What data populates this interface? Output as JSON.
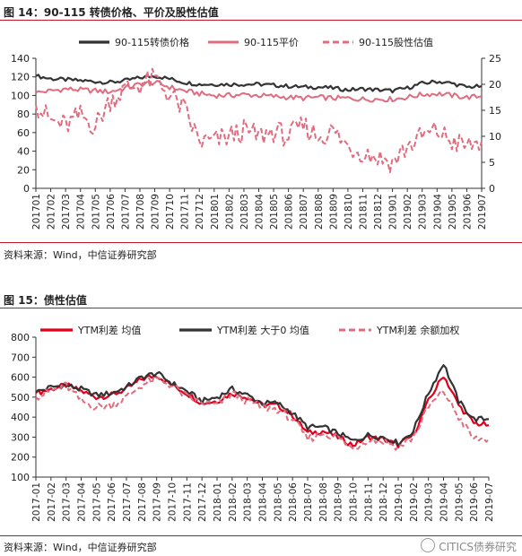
{
  "figure1": {
    "title": "图 14：90-115 转债价格、平价及股性估值",
    "source": "资料来源：Wind，中信证券研究部"
  },
  "figure2": {
    "title": "图 15：债性估值",
    "source": "资料来源：Wind，中信证券研究部"
  },
  "watermark": "CITICS债券研究",
  "colors": {
    "dark": "#333333",
    "pink": "#e06c80",
    "red": "#e0001b",
    "rule": "#c0182a"
  },
  "chart_data": [
    {
      "type": "line",
      "title": "",
      "categories": [
        "201701",
        "201702",
        "201703",
        "201704",
        "201705",
        "201706",
        "201707",
        "201708",
        "201709",
        "201710",
        "201711",
        "201712",
        "201801",
        "201802",
        "201803",
        "201804",
        "201805",
        "201806",
        "201807",
        "201808",
        "201809",
        "201810",
        "201811",
        "201812",
        "201901",
        "201902",
        "201903",
        "201904",
        "201905",
        "201906",
        "201907"
      ],
      "ylim": [
        0,
        140
      ],
      "yticks": [
        0,
        20,
        40,
        60,
        80,
        100,
        120,
        140
      ],
      "y2lim": [
        0,
        25
      ],
      "y2ticks": [
        0,
        5,
        10,
        15,
        20,
        25
      ],
      "legend_position": "top",
      "grid": false,
      "series": [
        {
          "name": "90-115转债价格",
          "axis": "left",
          "style": "solid-dark",
          "values": [
            121,
            118,
            117,
            116,
            115,
            114,
            116,
            119,
            121,
            118,
            114,
            112,
            112,
            112,
            112,
            112,
            111,
            110,
            109,
            109,
            108,
            106,
            107,
            106,
            105,
            108,
            113,
            115,
            113,
            109,
            110
          ]
        },
        {
          "name": "90-115平价",
          "axis": "left",
          "style": "solid-pink",
          "values": [
            103,
            105,
            107,
            106,
            105,
            104,
            108,
            112,
            114,
            109,
            105,
            102,
            100,
            100,
            101,
            100,
            99,
            98,
            97,
            98,
            97,
            97,
            96,
            96,
            96,
            98,
            101,
            102,
            100,
            98,
            99
          ]
        },
        {
          "name": "90-115股性估值",
          "axis": "right",
          "style": "dashed-pink",
          "values": [
            16,
            13,
            12,
            14,
            12,
            17,
            19,
            20,
            21,
            18,
            15,
            9,
            9,
            10,
            11,
            10,
            11,
            10,
            12,
            10,
            11,
            8,
            7,
            6,
            5,
            8,
            10,
            11,
            9,
            8,
            9
          ]
        }
      ]
    },
    {
      "type": "line",
      "title": "",
      "categories": [
        "2017-01",
        "2017-02",
        "2017-03",
        "2017-04",
        "2017-05",
        "2017-06",
        "2017-07",
        "2017-08",
        "2017-09",
        "2017-10",
        "2017-11",
        "2017-12",
        "2018-01",
        "2018-02",
        "2018-03",
        "2018-04",
        "2018-05",
        "2018-06",
        "2018-07",
        "2018-08",
        "2018-09",
        "2018-10",
        "2018-11",
        "2018-12",
        "2019-01",
        "2019-02",
        "2019-03",
        "2019-04",
        "2019-05",
        "2019-06",
        "2019-07"
      ],
      "ylim": [
        100,
        800
      ],
      "yticks": [
        100,
        200,
        300,
        400,
        500,
        600,
        700,
        800
      ],
      "legend_position": "top",
      "grid": false,
      "series": [
        {
          "name": "YTM利差 均值",
          "style": "solid-red",
          "values": [
            520,
            540,
            560,
            530,
            500,
            510,
            540,
            590,
            610,
            560,
            520,
            470,
            480,
            520,
            500,
            460,
            460,
            410,
            320,
            330,
            300,
            260,
            300,
            290,
            260,
            310,
            480,
            610,
            460,
            370,
            360
          ]
        },
        {
          "name": "YTM利差 大于0 均值",
          "style": "solid-dark",
          "values": [
            525,
            550,
            560,
            540,
            510,
            520,
            550,
            600,
            620,
            570,
            530,
            480,
            500,
            540,
            510,
            470,
            470,
            420,
            350,
            350,
            320,
            280,
            310,
            300,
            270,
            330,
            520,
            670,
            480,
            390,
            390
          ]
        },
        {
          "name": "YTM利差 余额加权",
          "style": "dashed-pink",
          "values": [
            500,
            530,
            560,
            480,
            450,
            460,
            500,
            560,
            590,
            560,
            500,
            470,
            460,
            520,
            480,
            450,
            440,
            390,
            290,
            320,
            300,
            240,
            290,
            280,
            250,
            300,
            450,
            530,
            400,
            290,
            290
          ]
        }
      ]
    }
  ]
}
